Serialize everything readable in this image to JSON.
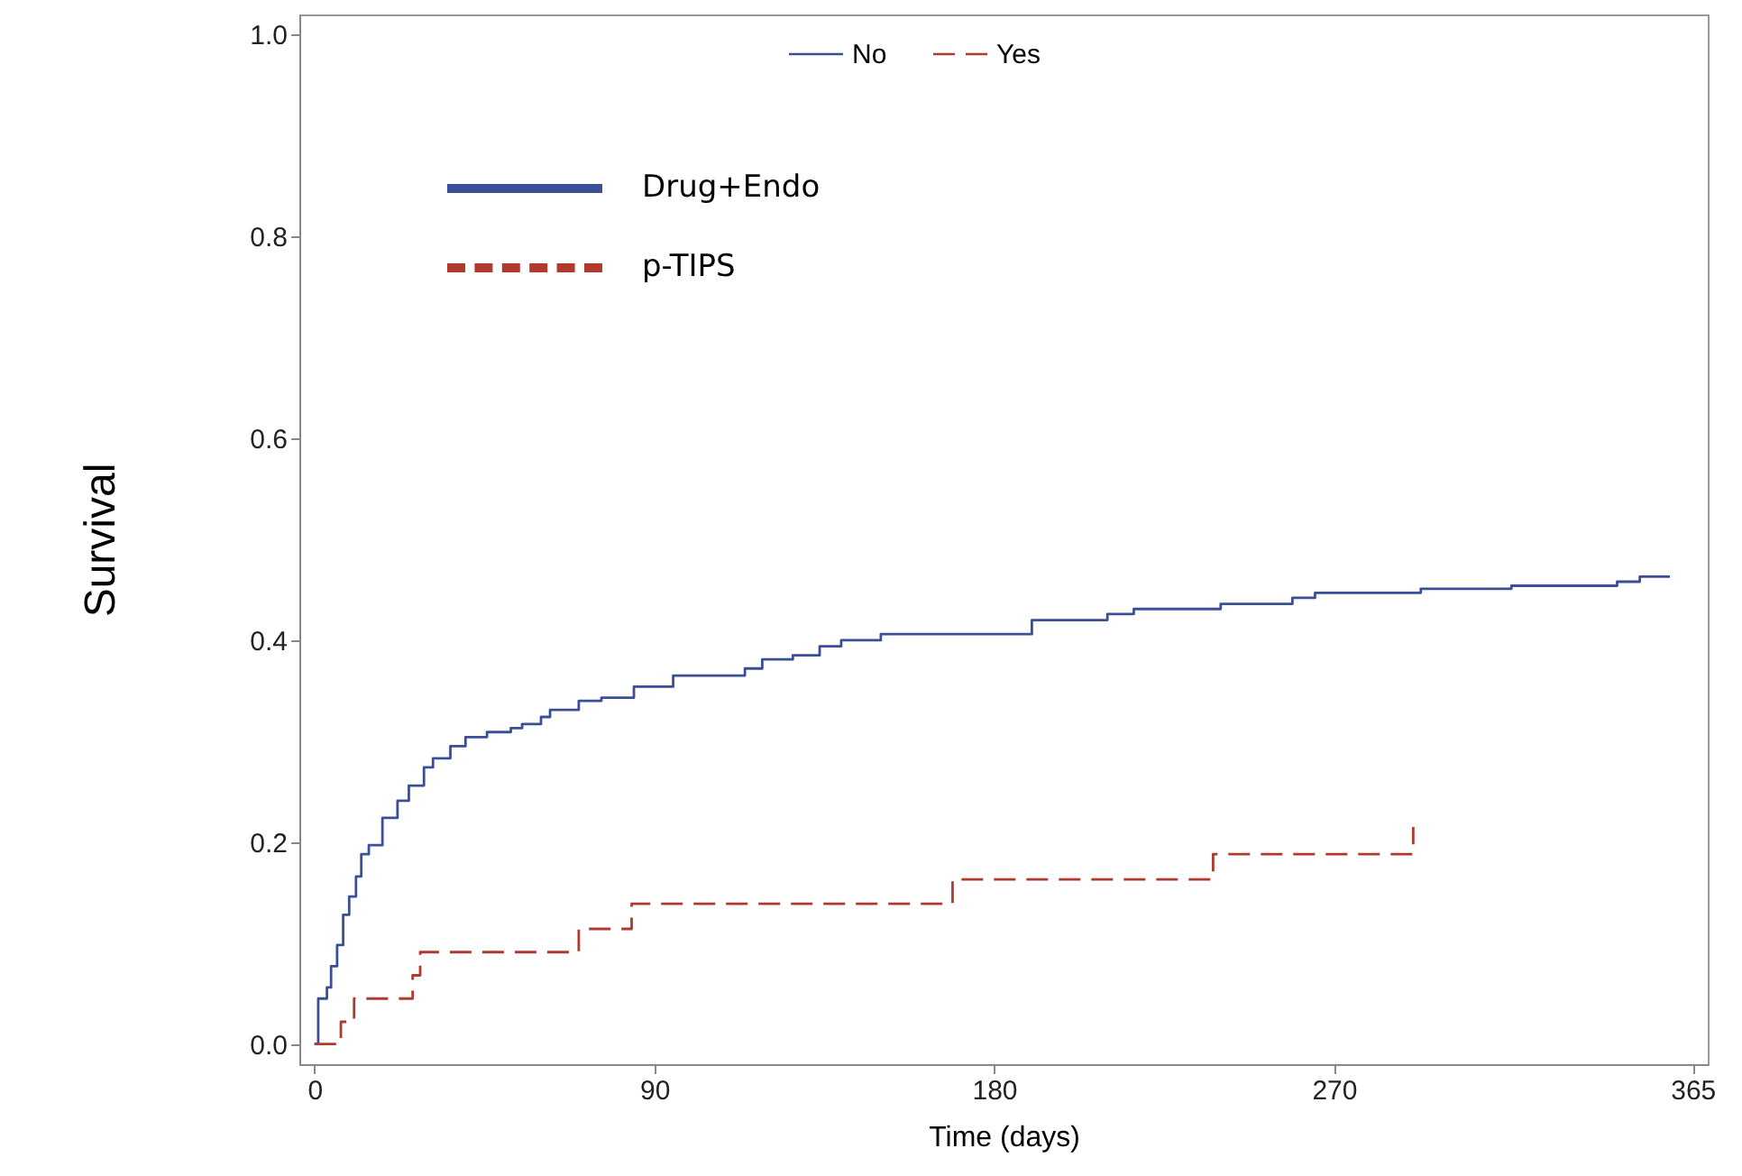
{
  "chart_data": {
    "type": "step",
    "xlabel": "Time (days)",
    "ylabel": "Survival",
    "xlim": [
      -4,
      369
    ],
    "xticks": [
      0,
      90,
      180,
      270,
      365
    ],
    "ylim": [
      -0.02,
      1.02
    ],
    "yticks": [
      {
        "value": 0,
        "label": "0.0"
      },
      {
        "value": 0.2,
        "label": "0.2"
      },
      {
        "value": 0.4,
        "label": "0.4"
      },
      {
        "value": 0.6,
        "label": "0.6"
      },
      {
        "value": 0.8,
        "label": "0.8"
      },
      {
        "value": 1,
        "label": "1.0"
      }
    ],
    "grid": false,
    "legend": "top",
    "series": [
      {
        "name": "No",
        "color": "#3b4f99",
        "line_style": "solid",
        "x": [
          0,
          1,
          3.3,
          4.4,
          6,
          7.6,
          9.2,
          11,
          12.4,
          14.4,
          18,
          22,
          25,
          29,
          31.4,
          36,
          40,
          45.7,
          52,
          55,
          60,
          62.4,
          70,
          76,
          84.6,
          95,
          114,
          118.6,
          126.7,
          133.8,
          139.5,
          150,
          190,
          210,
          217,
          240,
          259,
          265,
          293,
          317,
          345,
          351,
          359
        ],
        "values": [
          0,
          0.045,
          0.056,
          0.077,
          0.098,
          0.128,
          0.146,
          0.166,
          0.188,
          0.197,
          0.224,
          0.241,
          0.256,
          0.274,
          0.283,
          0.295,
          0.304,
          0.309,
          0.313,
          0.317,
          0.324,
          0.331,
          0.34,
          0.343,
          0.354,
          0.365,
          0.372,
          0.381,
          0.385,
          0.394,
          0.4,
          0.406,
          0.42,
          0.426,
          0.431,
          0.436,
          0.442,
          0.447,
          0.451,
          0.454,
          0.458,
          0.463,
          0.463
        ]
      },
      {
        "name": "Yes",
        "color": "#b03a2e",
        "line_style": "dashed",
        "x": [
          0,
          7,
          10.5,
          26,
          28,
          70,
          84,
          169,
          238,
          291
        ],
        "values": [
          0,
          0.022,
          0.045,
          0.068,
          0.091,
          0.114,
          0.139,
          0.163,
          0.188,
          0.215
        ]
      }
    ],
    "annotations": [
      "Drug+Endo",
      "p-TIPS"
    ]
  }
}
